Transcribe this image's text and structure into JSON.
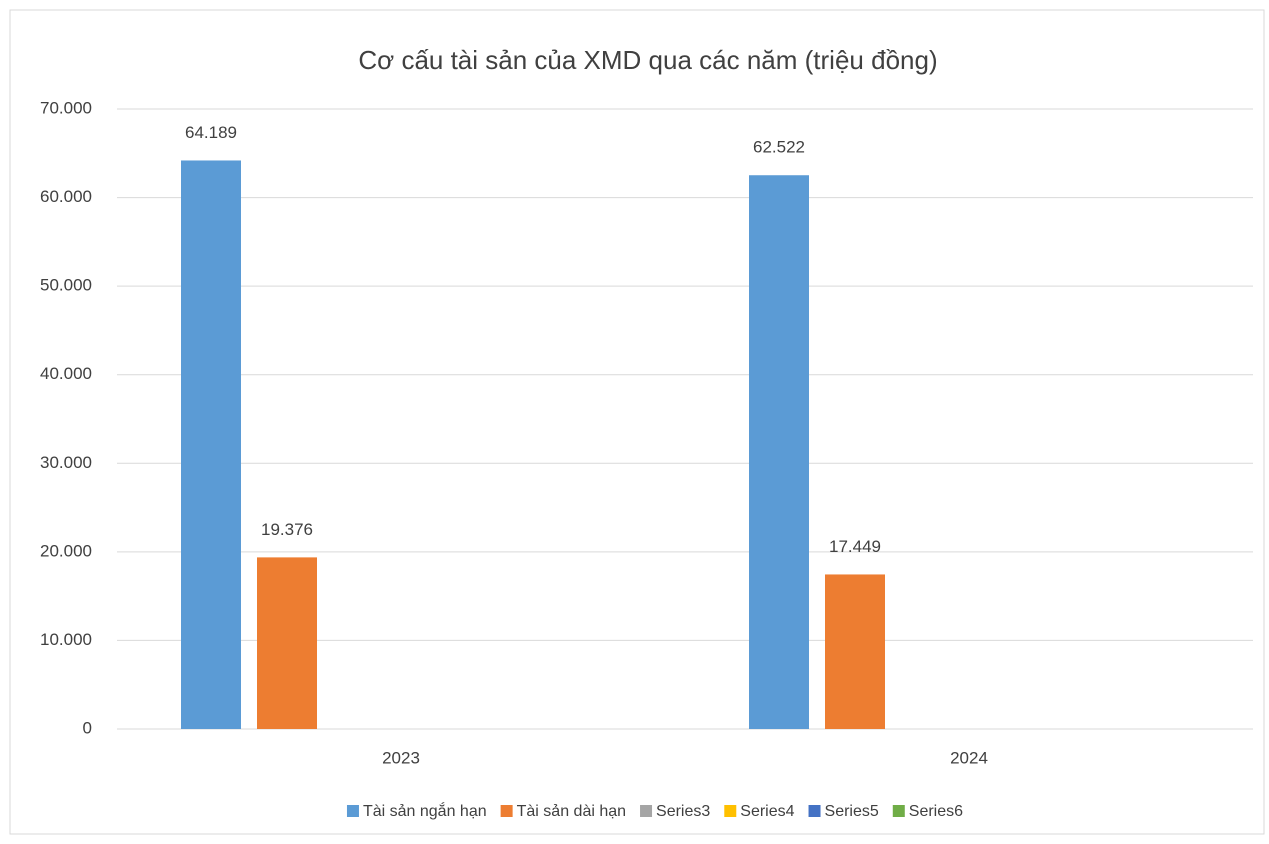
{
  "chart_data": {
    "type": "bar",
    "title": "Cơ cấu tài sản của XMD qua các năm (triệu đồng)",
    "categories": [
      "2023",
      "2024"
    ],
    "series": [
      {
        "name": "Tài sản ngắn hạn",
        "color": "#5b9bd5",
        "values": [
          64189,
          62522
        ],
        "value_labels": [
          "64.189",
          "62.522"
        ]
      },
      {
        "name": "Tài sản dài hạn",
        "color": "#ed7d31",
        "values": [
          19376,
          17449
        ],
        "value_labels": [
          "19.376",
          "17.449"
        ]
      },
      {
        "name": "Series3",
        "color": "#a5a5a5",
        "values": [
          null,
          null
        ]
      },
      {
        "name": "Series4",
        "color": "#ffc000",
        "values": [
          null,
          null
        ]
      },
      {
        "name": "Series5",
        "color": "#4472c4",
        "values": [
          null,
          null
        ]
      },
      {
        "name": "Series6",
        "color": "#70ad47",
        "values": [
          null,
          null
        ]
      }
    ],
    "ylim": [
      0,
      70000
    ],
    "yticks": [
      0,
      {
        "value": 10000,
        "label": "10.000"
      },
      {
        "value": 20000,
        "label": "20.000"
      },
      {
        "value": 30000,
        "label": "30.000"
      },
      {
        "value": 40000,
        "label": "40.000"
      },
      {
        "value": 50000,
        "label": "50.000"
      },
      {
        "value": 60000,
        "label": "60.000"
      },
      {
        "value": 70000,
        "label": "70.000"
      }
    ],
    "grid": true,
    "legend": "bottom"
  }
}
